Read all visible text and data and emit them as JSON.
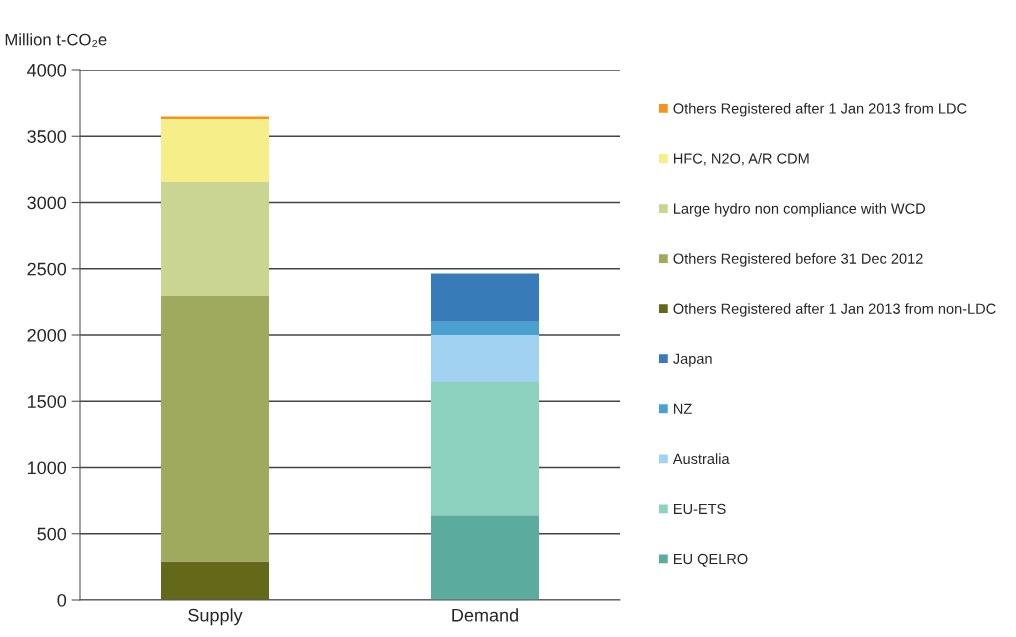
{
  "chart_data": {
    "type": "bar",
    "stacked": true,
    "ylabel": "Million t-CO₂e",
    "categories": [
      "Supply",
      "Demand"
    ],
    "ylim": [
      0,
      4000
    ],
    "yticks": [
      0,
      500,
      1000,
      1500,
      2000,
      2500,
      3000,
      3500,
      4000
    ],
    "grid": "y",
    "legend": "right",
    "series": [
      {
        "name": "EU QELRO",
        "color": "#5bac9f",
        "values": [
          0,
          640
        ]
      },
      {
        "name": "EU-ETS",
        "color": "#8dd1bf",
        "values": [
          0,
          1005
        ]
      },
      {
        "name": "Australia",
        "color": "#a2d2f1",
        "values": [
          0,
          355
        ]
      },
      {
        "name": "NZ",
        "color": "#4aa1d0",
        "values": [
          0,
          100
        ]
      },
      {
        "name": "Japan",
        "color": "#377bb8",
        "values": [
          0,
          365
        ]
      },
      {
        "name": "Others Registered after 1 Jan 2013 from non-LDC",
        "color": "#64691a",
        "values": [
          290,
          0
        ]
      },
      {
        "name": "Others Registered before 31 Dec 2012",
        "color": "#a0aa5f",
        "values": [
          2005,
          0
        ]
      },
      {
        "name": "Large hydro non compliance with WCD",
        "color": "#cad592",
        "values": [
          860,
          0
        ]
      },
      {
        "name": "HFC, N2O, A/R CDM",
        "color": "#f6ee88",
        "values": [
          475,
          0
        ]
      },
      {
        "name": "Others Registered after 1 Jan 2013 from LDC",
        "color": "#f7931e",
        "values": [
          20,
          0
        ]
      }
    ]
  }
}
